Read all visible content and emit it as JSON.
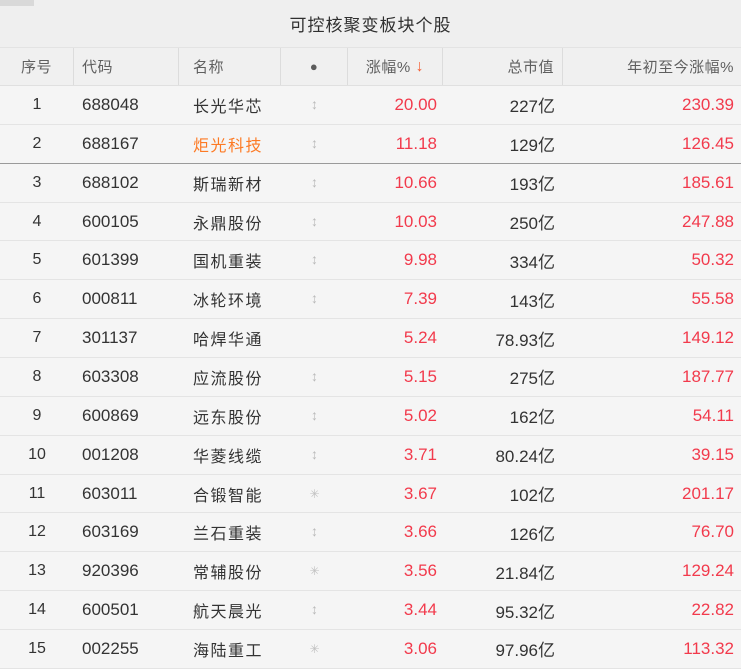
{
  "title": "可控核聚变板块个股",
  "colors": {
    "accent_red": "#f23a4c",
    "accent_orange": "#fd7a24",
    "sort_arrow": "#f55f35",
    "icon_gray": "#b9b9b9",
    "header_bg": "#f0f0f0",
    "row_bg": "#f5f5f5"
  },
  "table": {
    "columns": [
      {
        "key": "index",
        "label": "序号"
      },
      {
        "key": "code",
        "label": "代码"
      },
      {
        "key": "name",
        "label": "名称"
      },
      {
        "key": "icon",
        "label": "●"
      },
      {
        "key": "change",
        "label": "涨幅%",
        "sorted": "desc"
      },
      {
        "key": "market_cap",
        "label": "总市值"
      },
      {
        "key": "ytd_change",
        "label": "年初至今涨幅%"
      }
    ],
    "sort_indicator": "↓",
    "icon_glyphs": {
      "updown-arrow": "↕",
      "sun": "✳"
    },
    "rows": [
      {
        "index": "1",
        "code": "688048",
        "name": "长光华芯",
        "icon": "updown-arrow",
        "change": "20.00",
        "market_cap": "227亿",
        "ytd_change": "230.39"
      },
      {
        "index": "2",
        "code": "688167",
        "name": "炬光科技",
        "name_highlighted": true,
        "selected": true,
        "icon": "updown-arrow",
        "change": "11.18",
        "market_cap": "129亿",
        "ytd_change": "126.45"
      },
      {
        "index": "3",
        "code": "688102",
        "name": "斯瑞新材",
        "icon": "updown-arrow",
        "change": "10.66",
        "market_cap": "193亿",
        "ytd_change": "185.61"
      },
      {
        "index": "4",
        "code": "600105",
        "name": "永鼎股份",
        "icon": "updown-arrow",
        "change": "10.03",
        "market_cap": "250亿",
        "ytd_change": "247.88"
      },
      {
        "index": "5",
        "code": "601399",
        "name": "国机重装",
        "icon": "updown-arrow",
        "change": "9.98",
        "market_cap": "334亿",
        "ytd_change": "50.32"
      },
      {
        "index": "6",
        "code": "000811",
        "name": "冰轮环境",
        "icon": "updown-arrow",
        "change": "7.39",
        "market_cap": "143亿",
        "ytd_change": "55.58"
      },
      {
        "index": "7",
        "code": "301137",
        "name": "哈焊华通",
        "icon": "",
        "change": "5.24",
        "market_cap": "78.93亿",
        "ytd_change": "149.12"
      },
      {
        "index": "8",
        "code": "603308",
        "name": "应流股份",
        "icon": "updown-arrow",
        "change": "5.15",
        "market_cap": "275亿",
        "ytd_change": "187.77"
      },
      {
        "index": "9",
        "code": "600869",
        "name": "远东股份",
        "icon": "updown-arrow",
        "change": "5.02",
        "market_cap": "162亿",
        "ytd_change": "54.11"
      },
      {
        "index": "10",
        "code": "001208",
        "name": "华菱线缆",
        "icon": "updown-arrow",
        "change": "3.71",
        "market_cap": "80.24亿",
        "ytd_change": "39.15"
      },
      {
        "index": "11",
        "code": "603011",
        "name": "合锻智能",
        "icon": "sun",
        "change": "3.67",
        "market_cap": "102亿",
        "ytd_change": "201.17"
      },
      {
        "index": "12",
        "code": "603169",
        "name": "兰石重装",
        "icon": "updown-arrow",
        "change": "3.66",
        "market_cap": "126亿",
        "ytd_change": "76.70"
      },
      {
        "index": "13",
        "code": "920396",
        "name": "常辅股份",
        "icon": "sun",
        "change": "3.56",
        "market_cap": "21.84亿",
        "ytd_change": "129.24"
      },
      {
        "index": "14",
        "code": "600501",
        "name": "航天晨光",
        "icon": "updown-arrow",
        "change": "3.44",
        "market_cap": "95.32亿",
        "ytd_change": "22.82"
      },
      {
        "index": "15",
        "code": "002255",
        "name": "海陆重工",
        "icon": "sun",
        "change": "3.06",
        "market_cap": "97.96亿",
        "ytd_change": "113.32"
      }
    ]
  }
}
